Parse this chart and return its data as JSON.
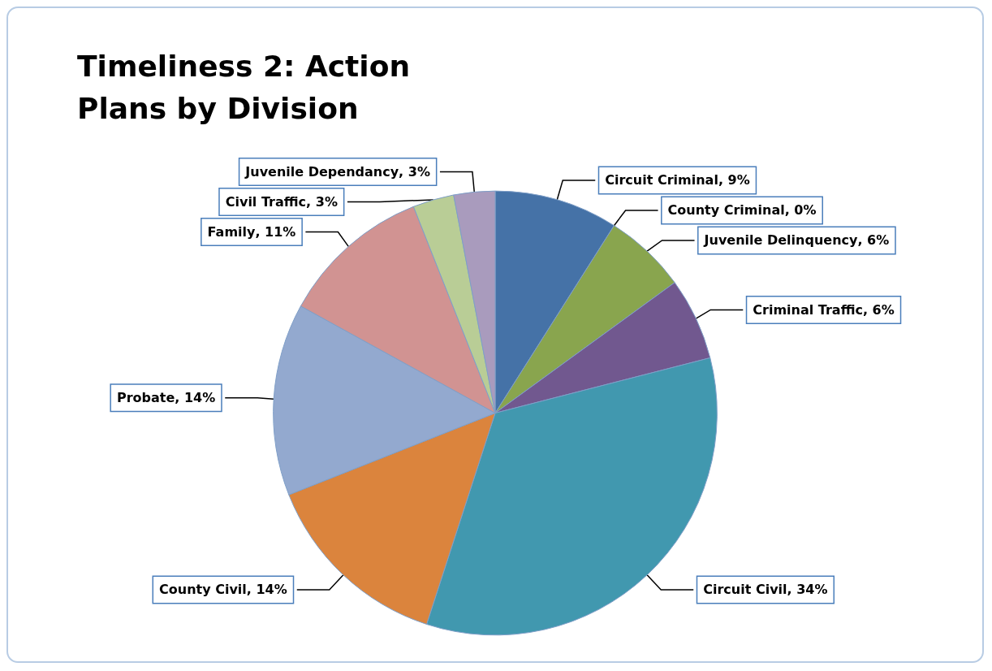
{
  "chart_data": {
    "type": "pie",
    "title": "Timeliness 2: Action Plans by Division",
    "categories": [
      "Circuit Criminal",
      "County Criminal",
      "Juvenile Delinquency",
      "Criminal Traffic",
      "Circuit Civil",
      "County Civil",
      "Probate",
      "Family",
      "Civil Traffic",
      "Juvenile Dependancy"
    ],
    "values": [
      9,
      0,
      6,
      6,
      34,
      14,
      14,
      11,
      3,
      3
    ],
    "colors": [
      "#4572a7",
      null,
      "#89a54e",
      "#71588f",
      "#4198af",
      "#db843d",
      "#93a9cf",
      "#d19392",
      "#b9cd96",
      "#a99bbd"
    ],
    "value_labels": [
      ", 9%",
      ", 0%",
      ", 6%",
      ", 6%",
      ", 34%",
      ", 14%",
      ", 14%",
      ", 11%",
      ", 3%",
      ", 3%"
    ]
  }
}
